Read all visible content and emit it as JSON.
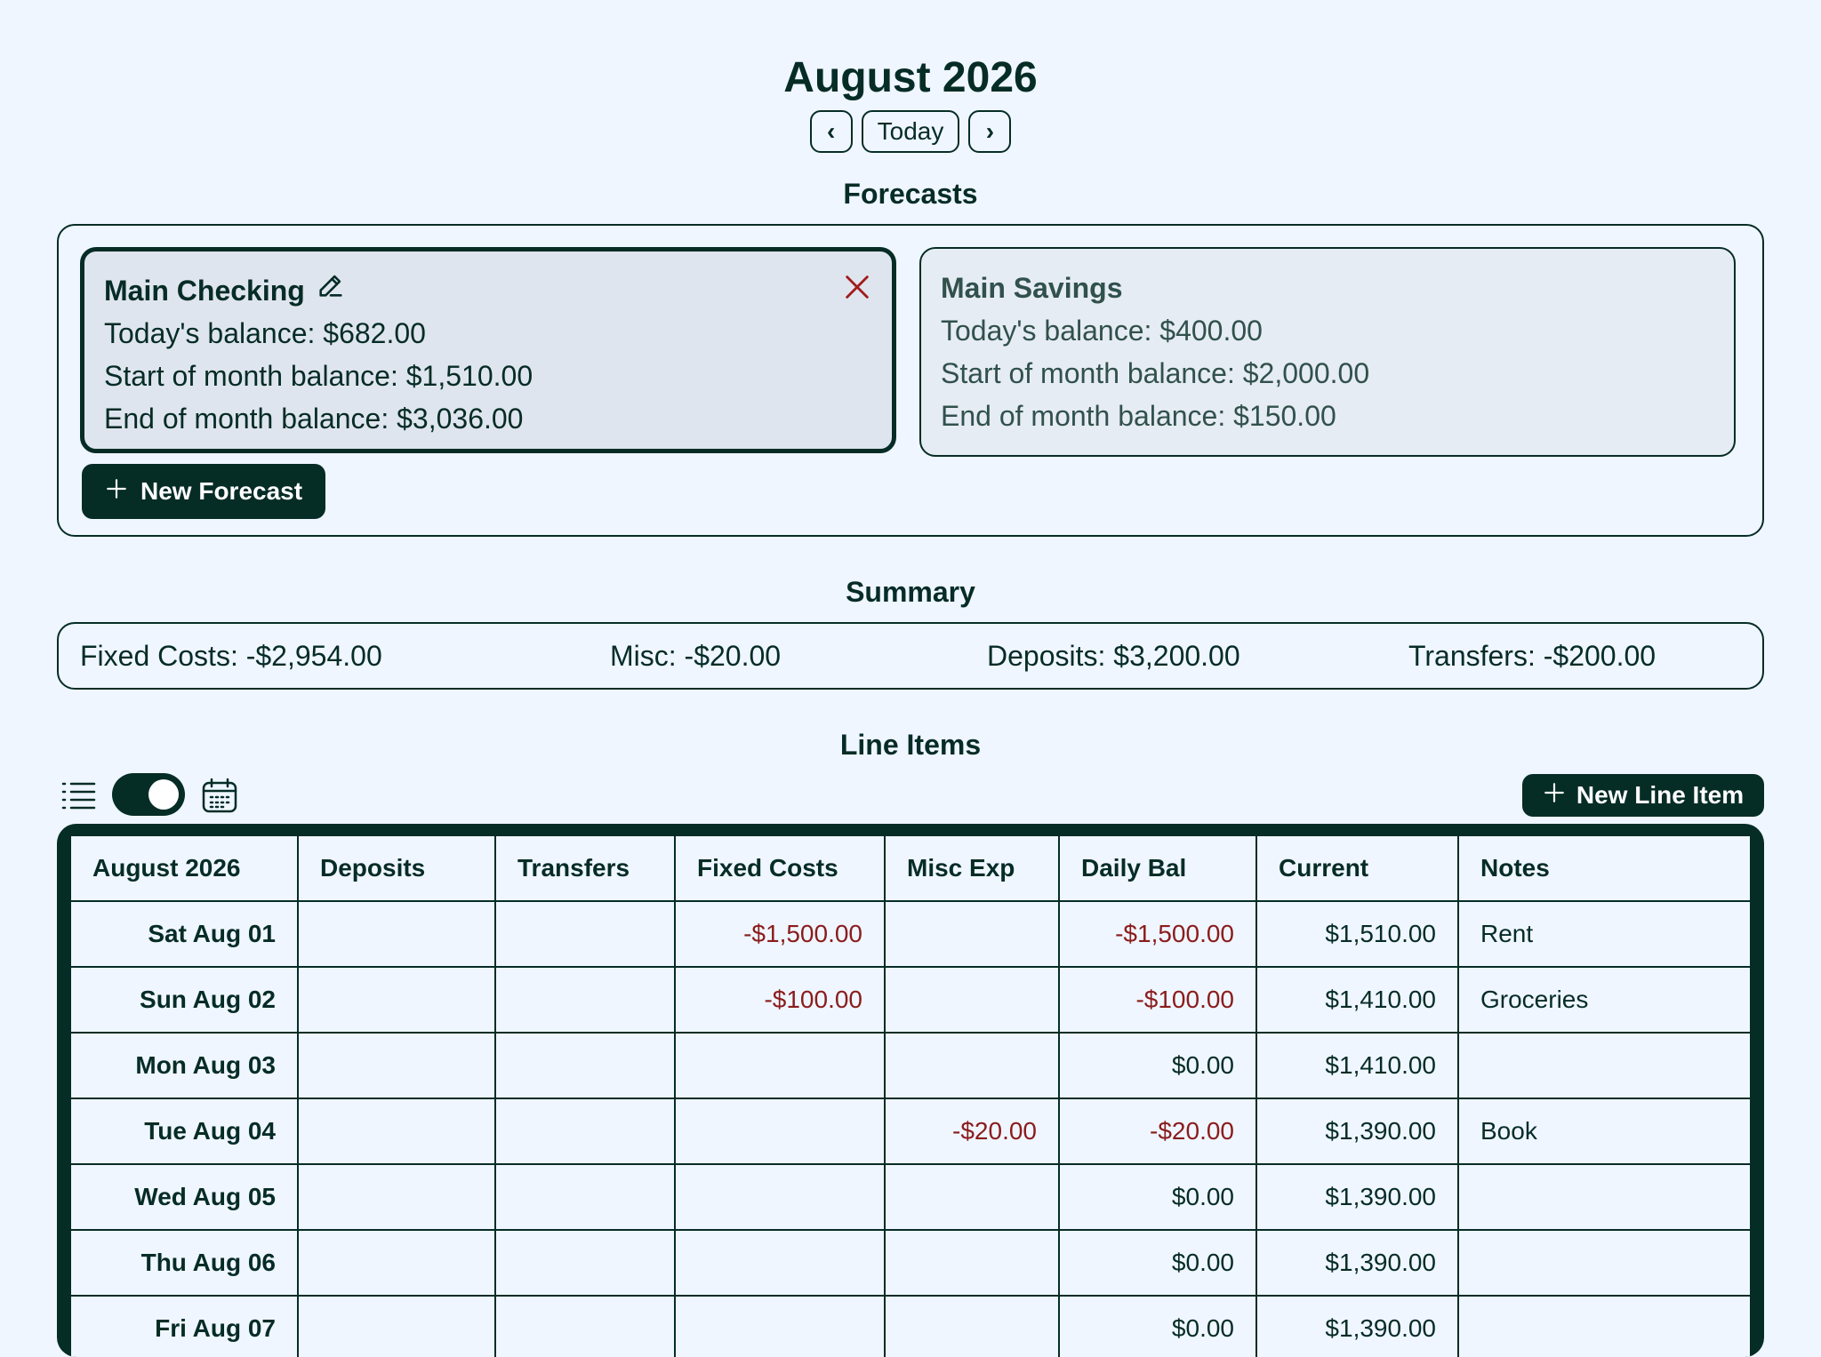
{
  "header": {
    "month_title": "August 2026",
    "prev_label": "‹",
    "today_label": "Today",
    "next_label": "›"
  },
  "forecasts": {
    "section_title": "Forecasts",
    "cards": [
      {
        "name": "Main Checking",
        "today": "Today's balance: $682.00",
        "start": "Start of month balance: $1,510.00",
        "end": "End of month balance: $3,036.00",
        "active": true
      },
      {
        "name": "Main Savings",
        "today": "Today's balance: $400.00",
        "start": "Start of month balance: $2,000.00",
        "end": "End of month balance: $150.00",
        "active": false
      }
    ],
    "new_button_label": "New Forecast"
  },
  "summary": {
    "section_title": "Summary",
    "fixed_costs": "Fixed Costs: -$2,954.00",
    "misc": "Misc: -$20.00",
    "deposits": "Deposits: $3,200.00",
    "transfers": "Transfers: -$200.00"
  },
  "line_items": {
    "section_title": "Line Items",
    "new_button_label": "New Line Item",
    "view_toggle_on": true,
    "columns": [
      "August 2026",
      "Deposits",
      "Transfers",
      "Fixed Costs",
      "Misc Exp",
      "Daily Bal",
      "Current",
      "Notes"
    ],
    "rows": [
      {
        "date": "Sat Aug 01",
        "deposits": "",
        "transfers": "",
        "fixed": "-$1,500.00",
        "misc": "",
        "daily": "-$1,500.00",
        "current": "$1,510.00",
        "notes": "Rent"
      },
      {
        "date": "Sun Aug 02",
        "deposits": "",
        "transfers": "",
        "fixed": "-$100.00",
        "misc": "",
        "daily": "-$100.00",
        "current": "$1,410.00",
        "notes": "Groceries"
      },
      {
        "date": "Mon Aug 03",
        "deposits": "",
        "transfers": "",
        "fixed": "",
        "misc": "",
        "daily": "$0.00",
        "current": "$1,410.00",
        "notes": ""
      },
      {
        "date": "Tue Aug 04",
        "deposits": "",
        "transfers": "",
        "fixed": "",
        "misc": "-$20.00",
        "daily": "-$20.00",
        "current": "$1,390.00",
        "notes": "Book"
      },
      {
        "date": "Wed Aug 05",
        "deposits": "",
        "transfers": "",
        "fixed": "",
        "misc": "",
        "daily": "$0.00",
        "current": "$1,390.00",
        "notes": ""
      },
      {
        "date": "Thu Aug 06",
        "deposits": "",
        "transfers": "",
        "fixed": "",
        "misc": "",
        "daily": "$0.00",
        "current": "$1,390.00",
        "notes": ""
      },
      {
        "date": "Fri Aug 07",
        "deposits": "",
        "transfers": "",
        "fixed": "",
        "misc": "",
        "daily": "$0.00",
        "current": "$1,390.00",
        "notes": ""
      }
    ]
  },
  "colors": {
    "primary": "#062c26",
    "negative": "#8b1c1c",
    "background": "#eff6ff"
  }
}
